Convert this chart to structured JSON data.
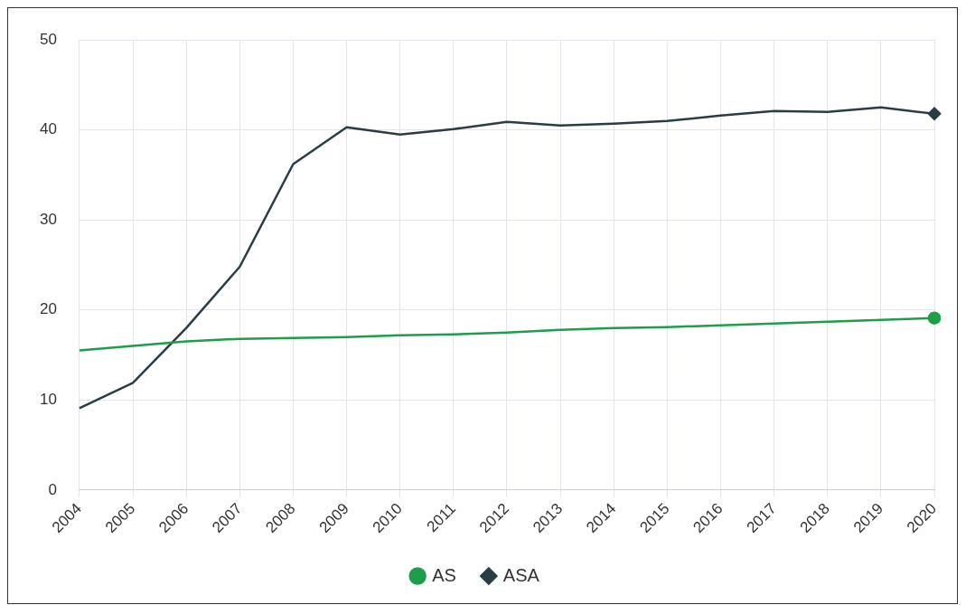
{
  "chart_data": {
    "type": "line",
    "categories": [
      "2004",
      "2005",
      "2006",
      "2007",
      "2008",
      "2009",
      "2010",
      "2011",
      "2012",
      "2013",
      "2014",
      "2015",
      "2016",
      "2017",
      "2018",
      "2019",
      "2020"
    ],
    "series": [
      {
        "name": "AS",
        "color": "#1e9e4a",
        "values": [
          15.5,
          16.0,
          16.5,
          16.8,
          16.9,
          17.0,
          17.2,
          17.3,
          17.5,
          17.8,
          18.0,
          18.1,
          18.3,
          18.5,
          18.7,
          18.9,
          19.1
        ]
      },
      {
        "name": "ASA",
        "color": "#2a3d45",
        "values": [
          9.1,
          11.9,
          18.0,
          24.8,
          36.2,
          40.3,
          39.5,
          40.1,
          40.9,
          40.5,
          40.7,
          41.0,
          41.6,
          42.1,
          42.0,
          42.5,
          41.8
        ]
      }
    ],
    "ylim": [
      0,
      50
    ],
    "yticks": [
      0,
      10,
      20,
      30,
      40,
      50
    ],
    "grid": true,
    "legend": "bottom",
    "line_style": "solid"
  }
}
